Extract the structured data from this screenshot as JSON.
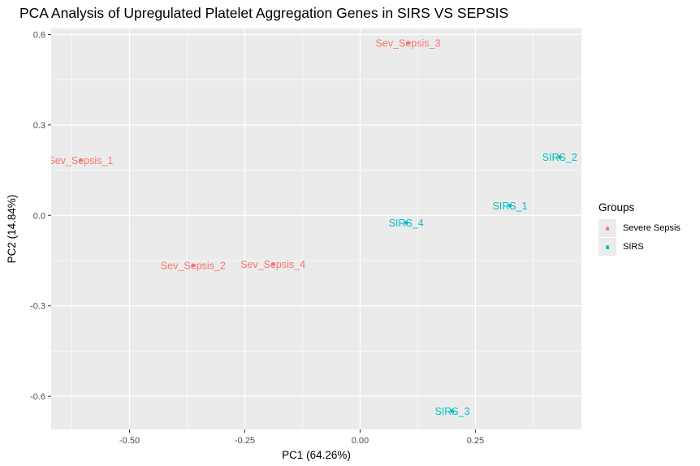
{
  "chart_data": {
    "type": "scatter",
    "title": "PCA Analysis of Upregulated Platelet Aggregation Genes in SIRS VS SEPSIS",
    "xlabel": "PC1 (64.26%)",
    "ylabel": "PC2 (14.84%)",
    "xlim": [
      -0.67,
      0.48
    ],
    "ylim": [
      -0.71,
      0.62
    ],
    "xticks": [
      -0.5,
      -0.25,
      0.0,
      0.25
    ],
    "xtick_labels": [
      "-0.50",
      "-0.25",
      "0.00",
      "0.25"
    ],
    "yticks": [
      -0.6,
      -0.3,
      0.0,
      0.3,
      0.6
    ],
    "ytick_labels": [
      "-0.6",
      "-0.3",
      "0.0",
      "0.3",
      "0.6"
    ],
    "grid": true,
    "background": "#ebebeb",
    "legend": {
      "title": "Groups",
      "position": "right"
    },
    "series": [
      {
        "name": "Severe Sepsis",
        "color": "#f8766d",
        "points": [
          {
            "label": "Sev_Sepsis_1",
            "x": -0.606,
            "y": 0.183
          },
          {
            "label": "Sev_Sepsis_2",
            "x": -0.362,
            "y": -0.166
          },
          {
            "label": "Sev_Sepsis_3",
            "x": 0.104,
            "y": 0.572
          },
          {
            "label": "Sev_Sepsis_4",
            "x": -0.189,
            "y": -0.162
          }
        ]
      },
      {
        "name": "SIRS",
        "color": "#00bfc4",
        "points": [
          {
            "label": "SIRS_1",
            "x": 0.325,
            "y": 0.032
          },
          {
            "label": "SIRS_2",
            "x": 0.433,
            "y": 0.193
          },
          {
            "label": "SIRS_3",
            "x": 0.2,
            "y": -0.65
          },
          {
            "label": "SIRS_4",
            "x": 0.1,
            "y": -0.025
          }
        ]
      }
    ]
  }
}
